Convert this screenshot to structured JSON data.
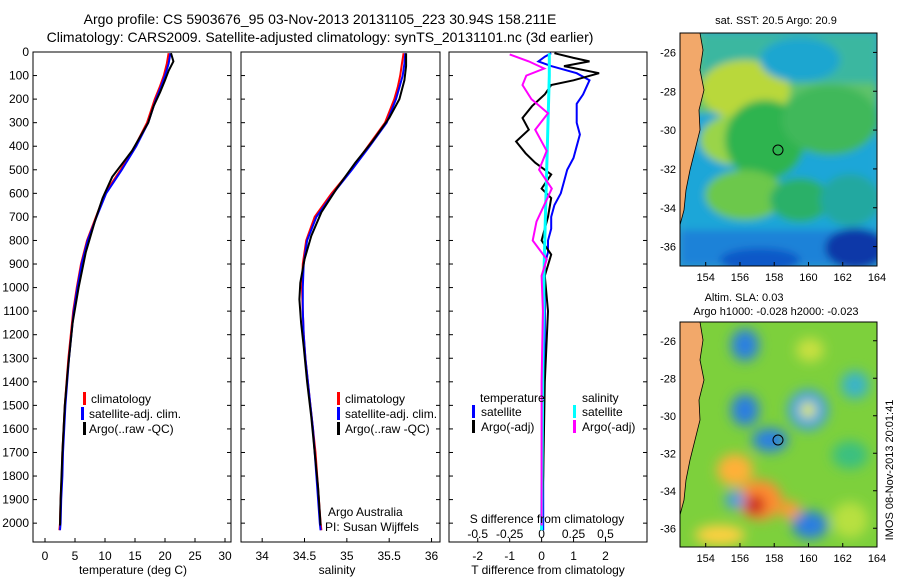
{
  "header": {
    "line1": "Argo profile: CS 5903676_95 03-Nov-2013 20131105_223 30.94S 158.211E",
    "line2": "Climatology: CARS2009. Satellite-adjusted climatology: synTS_20131101.nc (3d earlier)"
  },
  "colors": {
    "climatology": "#ff0000",
    "satellite": "#0000ff",
    "argo": "#000000",
    "sal_sat": "#00ffff",
    "sal_argo": "#ff00ff"
  },
  "depth_axis": {
    "ticks": [
      0,
      100,
      200,
      300,
      400,
      500,
      600,
      700,
      800,
      900,
      1000,
      1100,
      1200,
      1300,
      1400,
      1500,
      1600,
      1700,
      1800,
      1900,
      2000
    ],
    "ylim": [
      0,
      2080
    ]
  },
  "chart_data": [
    {
      "id": "temperature",
      "type": "line",
      "xlabel": "temperature (deg C)",
      "xlim": [
        -2,
        31
      ],
      "xticks": [
        0,
        5,
        10,
        15,
        20,
        25,
        30
      ],
      "legend": [
        "climatology",
        "satellite-adj. clim.",
        "Argo(..raw -QC)"
      ],
      "series": [
        {
          "name": "climatology",
          "color": "#ff0000",
          "points": [
            [
              20.6,
              5
            ],
            [
              20.3,
              50
            ],
            [
              19.8,
              100
            ],
            [
              19.1,
              150
            ],
            [
              18.3,
              200
            ],
            [
              17.0,
              300
            ],
            [
              15.0,
              400
            ],
            [
              12.6,
              500
            ],
            [
              10.0,
              600
            ],
            [
              8.5,
              700
            ],
            [
              7.0,
              800
            ],
            [
              6.0,
              900
            ],
            [
              5.3,
              1000
            ],
            [
              4.7,
              1100
            ],
            [
              4.3,
              1200
            ],
            [
              3.9,
              1300
            ],
            [
              3.6,
              1400
            ],
            [
              3.3,
              1500
            ],
            [
              3.1,
              1600
            ],
            [
              2.9,
              1700
            ],
            [
              2.8,
              1800
            ],
            [
              2.6,
              1900
            ],
            [
              2.5,
              2000
            ],
            [
              2.4,
              2030
            ]
          ]
        },
        {
          "name": "satellite-adj. clim.",
          "color": "#0000ff",
          "points": [
            [
              20.9,
              5
            ],
            [
              20.6,
              50
            ],
            [
              20.0,
              100
            ],
            [
              19.3,
              150
            ],
            [
              18.5,
              200
            ],
            [
              17.2,
              300
            ],
            [
              15.2,
              400
            ],
            [
              12.8,
              500
            ],
            [
              10.2,
              600
            ],
            [
              8.6,
              700
            ],
            [
              7.1,
              800
            ],
            [
              6.1,
              900
            ],
            [
              5.4,
              1000
            ],
            [
              4.8,
              1100
            ],
            [
              4.4,
              1200
            ],
            [
              4.0,
              1300
            ],
            [
              3.7,
              1400
            ],
            [
              3.4,
              1500
            ],
            [
              3.2,
              1600
            ],
            [
              3.0,
              1700
            ],
            [
              2.9,
              1800
            ],
            [
              2.7,
              1900
            ],
            [
              2.6,
              2000
            ],
            [
              2.5,
              2030
            ]
          ]
        },
        {
          "name": "Argo(..raw -QC)",
          "color": "#000000",
          "points": [
            [
              21.0,
              5
            ],
            [
              21.4,
              40
            ],
            [
              20.6,
              80
            ],
            [
              20.0,
              120
            ],
            [
              19.2,
              170
            ],
            [
              18.1,
              230
            ],
            [
              17.2,
              300
            ],
            [
              14.5,
              420
            ],
            [
              13.0,
              470
            ],
            [
              11.2,
              530
            ],
            [
              9.6,
              620
            ],
            [
              8.3,
              720
            ],
            [
              6.8,
              850
            ],
            [
              5.6,
              1000
            ],
            [
              4.6,
              1150
            ],
            [
              3.8,
              1350
            ],
            [
              3.3,
              1500
            ],
            [
              2.9,
              1700
            ],
            [
              2.6,
              1900
            ],
            [
              2.5,
              2010
            ]
          ]
        }
      ]
    },
    {
      "id": "salinity",
      "type": "line",
      "xlabel": "salinity",
      "xlim": [
        33.75,
        36.1
      ],
      "xticks": [
        34,
        34.5,
        35,
        35.5,
        36
      ],
      "legend": [
        "climatology",
        "satellite-adj. clim.",
        "Argo(..raw -QC)"
      ],
      "series": [
        {
          "name": "climatology",
          "color": "#ff0000",
          "points": [
            [
              35.67,
              5
            ],
            [
              35.65,
              50
            ],
            [
              35.63,
              100
            ],
            [
              35.6,
              150
            ],
            [
              35.56,
              200
            ],
            [
              35.45,
              300
            ],
            [
              35.25,
              400
            ],
            [
              35.05,
              500
            ],
            [
              34.82,
              600
            ],
            [
              34.62,
              700
            ],
            [
              34.52,
              800
            ],
            [
              34.48,
              900
            ],
            [
              34.47,
              1000
            ],
            [
              34.48,
              1100
            ],
            [
              34.49,
              1200
            ],
            [
              34.51,
              1300
            ],
            [
              34.54,
              1400
            ],
            [
              34.57,
              1500
            ],
            [
              34.6,
              1600
            ],
            [
              34.63,
              1700
            ],
            [
              34.65,
              1800
            ],
            [
              34.67,
              1900
            ],
            [
              34.69,
              2000
            ],
            [
              34.7,
              2030
            ]
          ]
        },
        {
          "name": "satellite-adj. clim.",
          "color": "#0000ff",
          "points": [
            [
              35.69,
              5
            ],
            [
              35.68,
              50
            ],
            [
              35.66,
              100
            ],
            [
              35.62,
              150
            ],
            [
              35.58,
              200
            ],
            [
              35.47,
              300
            ],
            [
              35.27,
              400
            ],
            [
              35.06,
              500
            ],
            [
              34.84,
              600
            ],
            [
              34.64,
              700
            ],
            [
              34.53,
              800
            ],
            [
              34.49,
              900
            ],
            [
              34.48,
              1000
            ],
            [
              34.48,
              1100
            ],
            [
              34.49,
              1200
            ],
            [
              34.51,
              1300
            ],
            [
              34.54,
              1400
            ],
            [
              34.57,
              1500
            ],
            [
              34.6,
              1600
            ],
            [
              34.62,
              1700
            ],
            [
              34.64,
              1800
            ],
            [
              34.66,
              1900
            ],
            [
              34.68,
              2000
            ],
            [
              34.69,
              2030
            ]
          ]
        },
        {
          "name": "Argo(..raw -QC)",
          "color": "#000000",
          "points": [
            [
              35.7,
              5
            ],
            [
              35.7,
              60
            ],
            [
              35.68,
              120
            ],
            [
              35.62,
              200
            ],
            [
              35.5,
              280
            ],
            [
              35.3,
              380
            ],
            [
              35.1,
              470
            ],
            [
              34.88,
              580
            ],
            [
              34.7,
              680
            ],
            [
              34.58,
              780
            ],
            [
              34.5,
              880
            ],
            [
              34.45,
              980
            ],
            [
              34.44,
              1050
            ],
            [
              34.46,
              1150
            ],
            [
              34.49,
              1250
            ],
            [
              34.53,
              1400
            ],
            [
              34.58,
              1550
            ],
            [
              34.62,
              1700
            ],
            [
              34.66,
              1850
            ],
            [
              34.69,
              2010
            ]
          ]
        }
      ]
    },
    {
      "id": "difference",
      "type": "line",
      "xlabel_bottom": "T difference from climatology",
      "xlabel_top": "S difference from climatology",
      "xlim": [
        -2.9,
        3.3
      ],
      "xticks": [
        -2,
        -1,
        0,
        1,
        2
      ],
      "xticks_top": [
        [
          -0.5,
          "-0.5"
        ],
        [
          -0.25,
          "-0.25"
        ],
        [
          0,
          "0"
        ],
        [
          0.25,
          "0.25"
        ],
        [
          0.5,
          "0.5"
        ]
      ],
      "legend_left_title": "temperature",
      "legend_right_title": "salinity",
      "legend": [
        "satellite",
        "Argo(-adj)",
        "satellite",
        "Argo(-adj)"
      ],
      "series": [
        {
          "name": "T satellite",
          "color": "#0000ff",
          "points": [
            [
              0.3,
              5
            ],
            [
              0.1,
              20
            ],
            [
              -0.1,
              40
            ],
            [
              0.3,
              60
            ],
            [
              1.1,
              90
            ],
            [
              1.5,
              120
            ],
            [
              1.4,
              150
            ],
            [
              1.3,
              180
            ],
            [
              1.1,
              220
            ],
            [
              1.1,
              260
            ],
            [
              1.1,
              300
            ],
            [
              1.2,
              350
            ],
            [
              1.1,
              400
            ],
            [
              1.0,
              450
            ],
            [
              0.8,
              500
            ],
            [
              0.7,
              550
            ],
            [
              0.6,
              600
            ],
            [
              0.4,
              650
            ],
            [
              0.3,
              700
            ],
            [
              0.3,
              750
            ],
            [
              0.2,
              800
            ],
            [
              0.2,
              850
            ],
            [
              0.1,
              900
            ],
            [
              0.1,
              1000
            ],
            [
              0.1,
              1200
            ],
            [
              0.05,
              1500
            ],
            [
              0.05,
              2030
            ]
          ]
        },
        {
          "name": "T Argo",
          "color": "#000000",
          "points": [
            [
              0.4,
              5
            ],
            [
              1.0,
              25
            ],
            [
              1.5,
              40
            ],
            [
              0.7,
              60
            ],
            [
              1.8,
              90
            ],
            [
              1.0,
              120
            ],
            [
              0.3,
              140
            ],
            [
              0.1,
              180
            ],
            [
              -0.3,
              230
            ],
            [
              -0.6,
              280
            ],
            [
              -0.4,
              330
            ],
            [
              -0.8,
              380
            ],
            [
              -0.5,
              430
            ],
            [
              -0.2,
              470
            ],
            [
              0.3,
              520
            ],
            [
              0.0,
              580
            ],
            [
              0.3,
              620
            ],
            [
              0.2,
              700
            ],
            [
              0.0,
              800
            ],
            [
              0.3,
              860
            ],
            [
              0.1,
              950
            ],
            [
              0.2,
              1100
            ],
            [
              0.1,
              1400
            ],
            [
              0.05,
              1800
            ],
            [
              0.0,
              2010
            ]
          ]
        },
        {
          "name": "S satellite",
          "color": "#00ffff",
          "points": [
            [
              0.06,
              5
            ],
            [
              0.06,
              100
            ],
            [
              0.05,
              300
            ],
            [
              0.04,
              500
            ],
            [
              0.03,
              700
            ],
            [
              0.02,
              900
            ],
            [
              0.01,
              1300
            ],
            [
              0.0,
              2030
            ]
          ]
        },
        {
          "name": "S Argo",
          "color": "#ff00ff",
          "points": [
            [
              -0.25,
              10
            ],
            [
              -0.1,
              40
            ],
            [
              0.02,
              70
            ],
            [
              -0.12,
              100
            ],
            [
              -0.15,
              140
            ],
            [
              -0.08,
              200
            ],
            [
              0.05,
              260
            ],
            [
              -0.05,
              330
            ],
            [
              0.04,
              420
            ],
            [
              -0.02,
              500
            ],
            [
              0.08,
              580
            ],
            [
              0.02,
              650
            ],
            [
              -0.04,
              720
            ],
            [
              -0.07,
              800
            ],
            [
              0.04,
              880
            ],
            [
              0.0,
              950
            ],
            [
              0.01,
              1100
            ],
            [
              0.0,
              1400
            ],
            [
              0.0,
              2010
            ]
          ]
        }
      ]
    },
    {
      "id": "sst_map",
      "type": "heatmap",
      "title": "sat. SST: 20.5  Argo: 20.9",
      "xticks": [
        154,
        156,
        158,
        160,
        162,
        164
      ],
      "yticks": [
        -26,
        -28,
        -30,
        -32,
        -34,
        -36
      ],
      "xlim": [
        152.5,
        164
      ],
      "ylim": [
        -37,
        -25
      ]
    },
    {
      "id": "sla_map",
      "type": "heatmap",
      "title": "Altim. SLA: 0.03",
      "subtitle": "Argo h1000: -0.028  h2000: -0.023",
      "xticks": [
        154,
        156,
        158,
        160,
        162,
        164
      ],
      "yticks": [
        -26,
        -28,
        -30,
        -32,
        -34,
        -36
      ],
      "xlim": [
        152.5,
        164
      ],
      "ylim": [
        -37,
        -25
      ]
    }
  ],
  "annotations": {
    "credit1": "Argo Australia",
    "credit2": "PI: Susan Wijffels",
    "stamp": "IMOS 08-Nov-2013 20:01:41"
  }
}
